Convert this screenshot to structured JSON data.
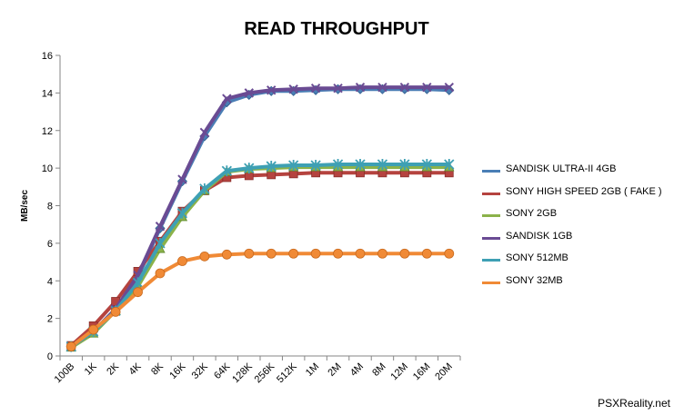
{
  "chart_data": {
    "type": "line",
    "title": "READ THROUGHPUT",
    "xlabel": "",
    "ylabel": "MB/sec",
    "ylim": [
      0,
      16
    ],
    "yticks": [
      0,
      2,
      4,
      6,
      8,
      10,
      12,
      14,
      16
    ],
    "grid": false,
    "legend_position": "right",
    "categories": [
      "100B",
      "1K",
      "2K",
      "4K",
      "8K",
      "16K",
      "32K",
      "64K",
      "128K",
      "256K",
      "512K",
      "1M",
      "2M",
      "4M",
      "8M",
      "12M",
      "16M",
      "20M"
    ],
    "series": [
      {
        "name": "SANDISK ULTRA-II 4GB",
        "color": "#4a7eb5",
        "marker": "diamond",
        "values": [
          0.5,
          1.3,
          2.5,
          4.2,
          6.8,
          9.3,
          11.7,
          13.5,
          13.9,
          14.1,
          14.1,
          14.15,
          14.2,
          14.2,
          14.2,
          14.2,
          14.2,
          14.15
        ]
      },
      {
        "name": "SONY HIGH SPEED 2GB ( FAKE )",
        "color": "#b5433f",
        "marker": "square",
        "values": [
          0.55,
          1.6,
          2.9,
          4.5,
          6.1,
          7.7,
          8.8,
          9.5,
          9.6,
          9.65,
          9.7,
          9.75,
          9.75,
          9.75,
          9.75,
          9.75,
          9.75,
          9.75
        ]
      },
      {
        "name": "SONY 2GB",
        "color": "#8bb24a",
        "marker": "triangle",
        "values": [
          0.45,
          1.2,
          2.4,
          3.7,
          5.7,
          7.4,
          8.8,
          9.8,
          9.95,
          10.0,
          10.05,
          10.05,
          10.05,
          10.05,
          10.05,
          10.05,
          10.05,
          10.05
        ]
      },
      {
        "name": "SANDISK 1GB",
        "color": "#6a4b93",
        "marker": "x",
        "values": [
          0.5,
          1.3,
          2.5,
          4.3,
          6.9,
          9.4,
          11.9,
          13.7,
          14.0,
          14.15,
          14.2,
          14.25,
          14.25,
          14.3,
          14.3,
          14.3,
          14.3,
          14.3
        ]
      },
      {
        "name": "SONY 512MB",
        "color": "#3ea0b4",
        "marker": "star",
        "values": [
          0.5,
          1.3,
          2.4,
          3.9,
          6.0,
          7.6,
          8.9,
          9.85,
          10.0,
          10.1,
          10.15,
          10.15,
          10.2,
          10.2,
          10.2,
          10.2,
          10.2,
          10.2
        ]
      },
      {
        "name": "SONY 32MB",
        "color": "#f08a36",
        "marker": "circle",
        "values": [
          0.5,
          1.4,
          2.35,
          3.4,
          4.4,
          5.05,
          5.3,
          5.4,
          5.45,
          5.45,
          5.45,
          5.45,
          5.45,
          5.45,
          5.45,
          5.45,
          5.45,
          5.45
        ]
      }
    ]
  },
  "watermark": "PSXReality.net"
}
